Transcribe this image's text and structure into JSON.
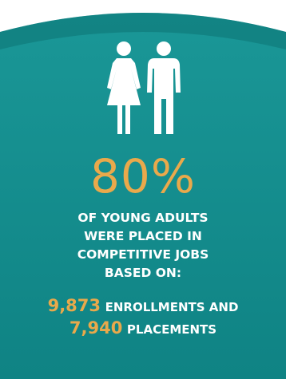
{
  "colors": {
    "panel": "#138e8f",
    "panel_dark": "#0c6f70",
    "accent": "#e9a94b",
    "text": "#ffffff"
  },
  "icons": [
    "female-person-icon",
    "male-person-icon"
  ],
  "headline": "80%",
  "subtext": {
    "line1": "OF YOUNG ADULTS",
    "line2": "WERE PLACED IN",
    "line3": "COMPETITIVE JOBS",
    "line4": "BASED ON:"
  },
  "stats": [
    {
      "number": "9,873",
      "label": "ENROLLMENTS AND"
    },
    {
      "number": "7,940",
      "label": "PLACEMENTS"
    }
  ]
}
